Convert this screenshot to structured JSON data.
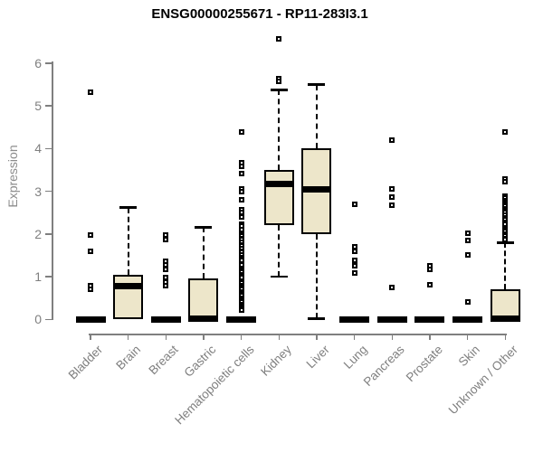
{
  "chart_data": {
    "type": "boxplot",
    "title": "ENSG00000255671 - RP11-283I3.1",
    "ylabel": "Expression",
    "xlabel": "",
    "ylim": [
      0,
      6.6
    ],
    "yticks": [
      0,
      1,
      2,
      3,
      4,
      5,
      6
    ],
    "grid": false,
    "legend": "none",
    "box_fill": "#EDE6CA",
    "box_border": "#000000",
    "axis_color": "#7f7f7f",
    "text_color": "#7f7f7f",
    "title_color": "#000000",
    "categories": [
      "Bladder",
      "Brain",
      "Breast",
      "Gastric",
      "Hematopoietic cells",
      "Kidney",
      "Liver",
      "Lung",
      "Pancreas",
      "Prostate",
      "Skin",
      "Unknown / Other"
    ],
    "series": [
      {
        "category": "Bladder",
        "q1": 0,
        "median": 0,
        "q3": 0,
        "whisker_low": 0,
        "whisker_high": 0,
        "outliers": [
          5.33,
          1.98,
          1.59,
          0.78,
          0.7
        ]
      },
      {
        "category": "Brain",
        "q1": 0,
        "median": 0.78,
        "q3": 1.05,
        "whisker_low": 0,
        "whisker_high": 2.62,
        "outliers": []
      },
      {
        "category": "Breast",
        "q1": 0,
        "median": 0,
        "q3": 0,
        "whisker_low": 0,
        "whisker_high": 0,
        "outliers": [
          1.97,
          1.88,
          1.36,
          1.28,
          1.17,
          0.99,
          0.88,
          0.79
        ]
      },
      {
        "category": "Gastric",
        "q1": 0,
        "median": 0.02,
        "q3": 0.95,
        "whisker_low": 0,
        "whisker_high": 2.16,
        "outliers": []
      },
      {
        "category": "Hematopoietic cells",
        "q1": 0,
        "median": 0,
        "q3": 0,
        "whisker_low": 0,
        "whisker_high": 0,
        "outliers": [
          4.4,
          3.66,
          3.59,
          3.42,
          3.06,
          3.0,
          2.81,
          2.56,
          2.5,
          2.4,
          2.22,
          2.18,
          2.1,
          2.02,
          1.98,
          1.95,
          1.9,
          1.87,
          1.8,
          1.75,
          1.72,
          1.65,
          1.6,
          1.57,
          1.5,
          1.45,
          1.42,
          1.38,
          1.3,
          1.27,
          1.2,
          1.15,
          1.1,
          1.05,
          1.0,
          0.97,
          0.9,
          0.85,
          0.8,
          0.75,
          0.7,
          0.65,
          0.6,
          0.55,
          0.5,
          0.45,
          0.4,
          0.35,
          0.3,
          0.25,
          0.21
        ]
      },
      {
        "category": "Kidney",
        "q1": 2.2,
        "median": 3.17,
        "q3": 3.5,
        "whisker_low": 1.0,
        "whisker_high": 5.38,
        "outliers": [
          6.58,
          5.65,
          5.57
        ]
      },
      {
        "category": "Liver",
        "q1": 2.0,
        "median": 3.05,
        "q3": 4.0,
        "whisker_low": 0.02,
        "whisker_high": 5.5,
        "outliers": []
      },
      {
        "category": "Lung",
        "q1": 0,
        "median": 0,
        "q3": 0,
        "whisker_low": 0,
        "whisker_high": 0,
        "outliers": [
          2.7,
          1.69,
          1.6,
          1.38,
          1.25,
          1.09
        ]
      },
      {
        "category": "Pancreas",
        "q1": 0,
        "median": 0,
        "q3": 0,
        "whisker_low": 0,
        "whisker_high": 0,
        "outliers": [
          4.2,
          3.06,
          2.87,
          2.68,
          0.75
        ]
      },
      {
        "category": "Prostate",
        "q1": 0,
        "median": 0,
        "q3": 0,
        "whisker_low": 0,
        "whisker_high": 0,
        "outliers": [
          1.25,
          1.18,
          0.81
        ]
      },
      {
        "category": "Skin",
        "q1": 0,
        "median": 0,
        "q3": 0,
        "whisker_low": 0,
        "whisker_high": 0,
        "outliers": [
          2.01,
          1.85,
          1.5,
          0.4
        ]
      },
      {
        "category": "Unknown / Other",
        "q1": 0,
        "median": 0.02,
        "q3": 0.7,
        "whisker_low": 0,
        "whisker_high": 1.8,
        "outliers": [
          4.39,
          3.28,
          3.22,
          2.89,
          2.84,
          2.79,
          2.74,
          2.7,
          2.65,
          2.6,
          2.55,
          2.5,
          2.44,
          2.38,
          2.33,
          2.28,
          2.22,
          2.15,
          2.1,
          2.05,
          2.0,
          1.95,
          1.9,
          1.86
        ]
      }
    ]
  }
}
